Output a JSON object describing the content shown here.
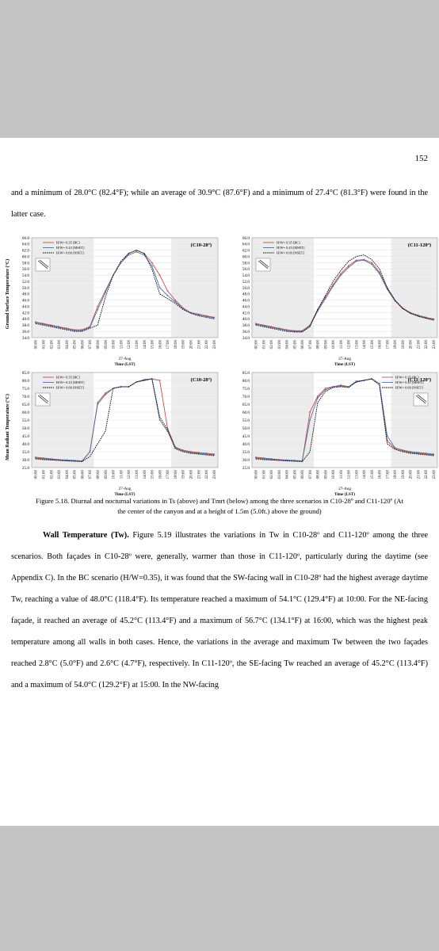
{
  "page_number": "152",
  "paragraph_top": "and a minimum of 28.0°C (82.4°F); while an average of 30.9°C (87.6°F) and a minimum of 27.4°C (81.3°F) were found in the latter case.",
  "figure": {
    "caption": "Figure 5.18. Diurnal and nocturnal variations in Ts (above) and Tmrt (below) among the three scenarios in C10-28º and C11-120º (At the center of the canyon and at a height of 1.5m (5.0ft.) above the ground)",
    "ylabel_top": "Ground Surface Temperature (°C)",
    "ylabel_bottom": "Mean Radiant Temperature (°C)",
    "date_label": "27-Aug",
    "xlabel": "Time (LST)",
    "legend": [
      "H/W= 0.35 [BC]",
      "H/W= 0.43 [MSET]",
      "H/W= 0.60 [NSET]"
    ]
  },
  "chart_data": [
    {
      "type": "line",
      "title": "(C10-28º)",
      "xlabel": "Time (LST)",
      "ylabel": "Ground Surface Temperature (°C)",
      "ylim": [
        34,
        66
      ],
      "yticks": [
        34,
        36,
        38,
        40,
        42,
        44,
        46,
        48,
        50,
        52,
        54,
        56,
        58,
        60,
        62,
        64,
        66
      ],
      "x": [
        "00:00",
        "01:00",
        "02:00",
        "03:00",
        "04:00",
        "05:00",
        "06:00",
        "07:00",
        "08:00",
        "09:00",
        "10:00",
        "11:00",
        "12:00",
        "13:00",
        "14:00",
        "15:00",
        "16:00",
        "17:00",
        "18:00",
        "19:00",
        "20:00",
        "21:00",
        "22:00",
        "23:00"
      ],
      "legend_placement": "top-left",
      "shaded_ranges": [
        [
          0,
          7
        ],
        [
          18,
          23
        ]
      ],
      "series": [
        {
          "name": "H/W= 0.35 [BC]",
          "color": "#c0504d",
          "values": [
            39,
            38.5,
            38,
            37.5,
            37,
            36.5,
            36.5,
            37.5,
            44,
            49,
            54,
            58,
            61,
            62,
            61,
            58,
            54,
            49,
            46,
            43.5,
            42,
            41.5,
            41,
            40.5
          ]
        },
        {
          "name": "H/W= 0.43 [MSET]",
          "color": "#4f6fa8",
          "values": [
            38.8,
            38.3,
            37.8,
            37.3,
            36.8,
            36.3,
            36.3,
            37.3,
            43,
            48.5,
            54,
            58,
            60.5,
            61.5,
            60.5,
            57,
            50,
            47.5,
            45.5,
            43.3,
            42,
            41.3,
            40.8,
            40.3
          ]
        },
        {
          "name": "H/W= 0.60 [NSET]",
          "color": "#000000",
          "dash": true,
          "values": [
            38.5,
            38,
            37.5,
            37,
            36.5,
            36,
            36,
            37,
            38,
            47,
            54,
            58.5,
            61,
            62,
            61,
            56,
            48,
            46.5,
            45,
            43,
            41.8,
            41,
            40.5,
            40
          ]
        }
      ]
    },
    {
      "type": "line",
      "title": "(C11-120º)",
      "xlabel": "Time (LST)",
      "ylim": [
        34,
        66
      ],
      "yticks": [
        34,
        36,
        38,
        40,
        42,
        44,
        46,
        48,
        50,
        52,
        54,
        56,
        58,
        60,
        62,
        64,
        66
      ],
      "x": [
        "00:00",
        "01:00",
        "02:00",
        "03:00",
        "04:00",
        "05:00",
        "06:00",
        "07:00",
        "08:00",
        "09:00",
        "10:00",
        "11:00",
        "12:00",
        "13:00",
        "14:00",
        "15:00",
        "16:00",
        "17:00",
        "18:00",
        "19:00",
        "20:00",
        "21:00",
        "22:00",
        "23:00"
      ],
      "legend_placement": "top-left",
      "shaded_ranges": [
        [
          0,
          7
        ],
        [
          18,
          23
        ]
      ],
      "series": [
        {
          "name": "H/W= 0.35 [BC]",
          "color": "#c0504d",
          "values": [
            38.5,
            38,
            37.5,
            37,
            36.5,
            36.2,
            36.2,
            38,
            43,
            47,
            51,
            54.5,
            57,
            58.8,
            59,
            58,
            55,
            50,
            46,
            43.5,
            42,
            41.2,
            40.5,
            40
          ]
        },
        {
          "name": "H/W= 0.43 [MSET]",
          "color": "#4f6fa8",
          "values": [
            38.3,
            37.8,
            37.3,
            36.8,
            36.3,
            36,
            36,
            37.8,
            42.5,
            46.5,
            50.5,
            54,
            56.5,
            58.5,
            58.8,
            57.5,
            54.5,
            49.5,
            45.8,
            43.3,
            41.8,
            41,
            40.3,
            39.8
          ]
        },
        {
          "name": "H/W= 0.60 [NSET]",
          "color": "#000000",
          "dash": true,
          "values": [
            38,
            37.5,
            37,
            36.5,
            36,
            35.8,
            35.8,
            37.5,
            43,
            47.5,
            52,
            55.5,
            58.5,
            60,
            60.5,
            59,
            56,
            50,
            46,
            43.3,
            41.8,
            40.8,
            40.2,
            39.6
          ]
        }
      ]
    },
    {
      "type": "line",
      "title": "(C10-28º)",
      "xlabel": "Time (LST)",
      "ylabel": "Mean Radiant Temperature (°C)",
      "ylim": [
        25,
        85
      ],
      "yticks": [
        25,
        30,
        35,
        40,
        45,
        50,
        55,
        60,
        65,
        70,
        75,
        80,
        85
      ],
      "x": [
        "00:00",
        "01:00",
        "02:00",
        "03:00",
        "04:00",
        "05:00",
        "06:00",
        "07:00",
        "08:00",
        "09:00",
        "10:00",
        "11:00",
        "12:00",
        "13:00",
        "14:00",
        "15:00",
        "16:00",
        "17:00",
        "18:00",
        "19:00",
        "20:00",
        "21:00",
        "22:00",
        "23:00"
      ],
      "legend_placement": "top-left",
      "shaded_ranges": [
        [
          0,
          7
        ],
        [
          18,
          23
        ]
      ],
      "series": [
        {
          "name": "H/W= 0.35 [BC]",
          "color": "#c0504d",
          "values": [
            31,
            30.5,
            30,
            29.8,
            29.5,
            29.2,
            29,
            35,
            66,
            72,
            75,
            76,
            76,
            79,
            80,
            81,
            80,
            50,
            38,
            36,
            35,
            34.5,
            34,
            33.5
          ]
        },
        {
          "name": "H/W= 0.43 [MSET]",
          "color": "#4f6fa8",
          "values": [
            31.5,
            31,
            30.5,
            30,
            29.8,
            29.5,
            29.2,
            35,
            65,
            71,
            75,
            76,
            76,
            79,
            80.5,
            81,
            55,
            48,
            37.5,
            35.5,
            34.5,
            34,
            33.5,
            33
          ]
        },
        {
          "name": "H/W= 0.60 [NSET]",
          "color": "#000000",
          "dash": true,
          "values": [
            30.5,
            30,
            29.8,
            29.5,
            29.2,
            29,
            28.8,
            32,
            40,
            48,
            75,
            76,
            76,
            79,
            80,
            81,
            57,
            49,
            37,
            35,
            34,
            33.5,
            33,
            32.5
          ]
        }
      ]
    },
    {
      "type": "line",
      "title": "(C11-120º)",
      "xlabel": "Time (LST)",
      "ylim": [
        25,
        85
      ],
      "yticks": [
        25,
        30,
        35,
        40,
        45,
        50,
        55,
        60,
        65,
        70,
        75,
        80,
        85
      ],
      "x": [
        "00:00",
        "01:00",
        "02:00",
        "03:00",
        "04:00",
        "05:00",
        "06:00",
        "07:00",
        "08:00",
        "09:00",
        "10:00",
        "11:00",
        "12:00",
        "13:00",
        "14:00",
        "15:00",
        "16:00",
        "17:00",
        "18:00",
        "19:00",
        "20:00",
        "21:00",
        "22:00",
        "23:00"
      ],
      "legend_placement": "top-right",
      "shaded_ranges": [
        [
          0,
          7
        ],
        [
          18,
          23
        ]
      ],
      "series": [
        {
          "name": "H/W= 0.35 [BC]",
          "color": "#c0504d",
          "values": [
            31,
            30.5,
            30,
            29.8,
            29.5,
            29.2,
            29,
            60,
            70,
            75,
            76,
            77,
            76,
            79,
            80,
            81,
            78,
            42,
            37,
            35.5,
            34.5,
            34,
            33.5,
            33
          ]
        },
        {
          "name": "H/W= 0.43 [MSET]",
          "color": "#4f6fa8",
          "values": [
            31.5,
            31,
            30.5,
            30,
            29.8,
            29.5,
            29.2,
            55,
            69,
            74,
            76,
            76.5,
            76,
            79.5,
            80,
            81,
            78,
            45,
            37.5,
            36,
            35,
            34.5,
            34,
            33.5
          ]
        },
        {
          "name": "H/W= 0.60 [NSET]",
          "color": "#000000",
          "dash": true,
          "values": [
            30.5,
            30,
            29.8,
            29.5,
            29.2,
            29,
            28.8,
            35,
            66,
            73,
            75.5,
            76,
            75.5,
            79,
            80,
            81,
            77,
            40,
            36.5,
            35,
            34,
            33.5,
            33,
            32.5
          ]
        }
      ]
    }
  ],
  "paragraph_wall": {
    "heading": "Wall Temperature (Tw).",
    "body": " Figure 5.19 illustrates the variations in Tw in C10-28º and C11-120º among the three scenarios. Both façades in C10-28º were, generally, warmer than those in C11-120º, particularly during the daytime (see Appendix C). In the BC scenario (H/W=0.35), it was found that the SW-facing wall in C10-28º had the highest average daytime Tw, reaching a value of 48.0°C (118.4°F). Its temperature reached a maximum of 54.1°C (129.4°F) at 10:00. For the NE-facing façade, it reached an average of 45.2°C (113.4°F) and a maximum of 56.7°C (134.1°F) at 16:00, which was the highest peak temperature among all walls in both cases. Hence, the variations in the average and maximum Tw between the two façades reached 2.8°C (5.0°F) and 2.6°C (4.7°F), respectively. In C11-120º, the SE-facing Tw reached an average of 45.2°C (113.4°F) and a maximum of 54.0°C (129.2°F) at 15:00. In the NW-facing"
  }
}
